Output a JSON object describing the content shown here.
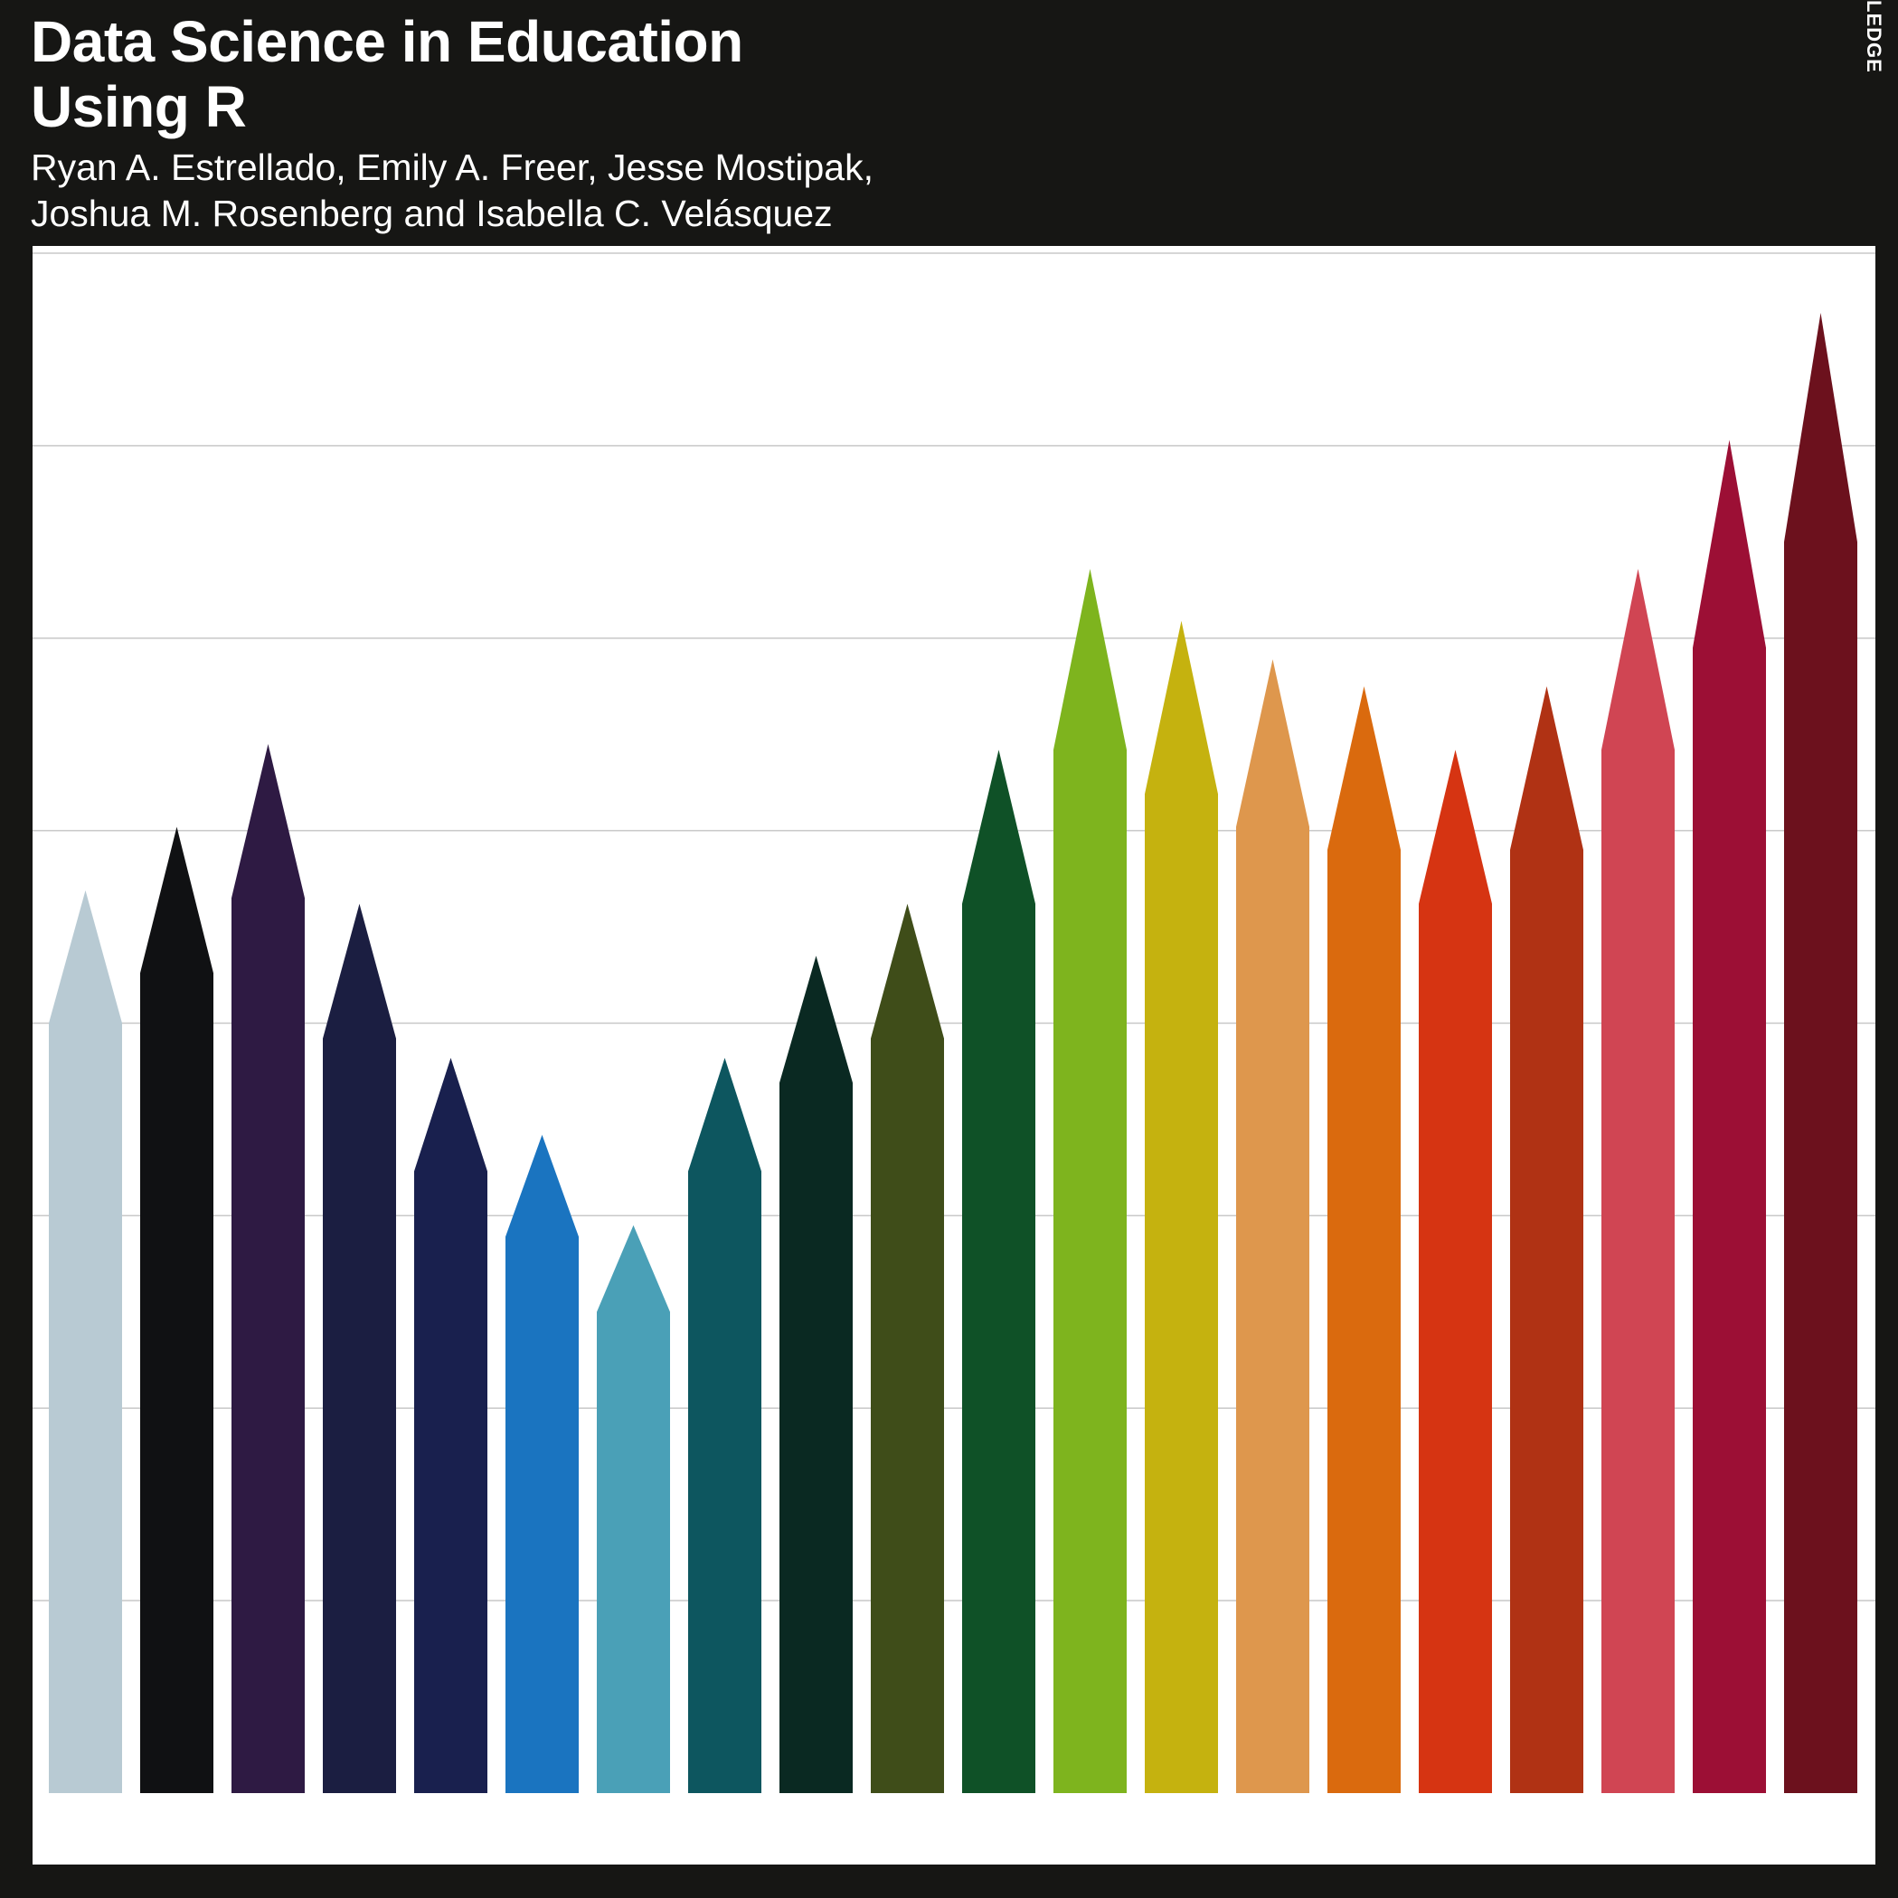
{
  "cover": {
    "title_lines": [
      "Data Science in Education",
      "Using R"
    ],
    "author_lines": [
      "Ryan A. Estrellado, Emily A. Freer, Jesse Mostipak,",
      "Joshua M. Rosenberg and Isabella C. Velásquez"
    ],
    "publisher_fragment": "LEDGE",
    "colors": {
      "background": "#161614",
      "panel": "#ffffff",
      "gridline": "#c8c8c8"
    }
  },
  "chart_data": {
    "type": "bar",
    "ylim": [
      0,
      8
    ],
    "grid": true,
    "bars": [
      {
        "shoulder": 4.0,
        "tip": 4.69,
        "color": "#b8cad3"
      },
      {
        "shoulder": 4.26,
        "tip": 5.02,
        "color": "#101113"
      },
      {
        "shoulder": 4.65,
        "tip": 5.45,
        "color": "#2e1a43"
      },
      {
        "shoulder": 3.92,
        "tip": 4.62,
        "color": "#1b1e41"
      },
      {
        "shoulder": 3.23,
        "tip": 3.82,
        "color": "#19204e"
      },
      {
        "shoulder": 2.89,
        "tip": 3.42,
        "color": "#1a74c0"
      },
      {
        "shoulder": 2.5,
        "tip": 2.95,
        "color": "#4aa0b7"
      },
      {
        "shoulder": 3.23,
        "tip": 3.82,
        "color": "#0d565f"
      },
      {
        "shoulder": 3.69,
        "tip": 4.35,
        "color": "#0a2922"
      },
      {
        "shoulder": 3.92,
        "tip": 4.62,
        "color": "#3f4d19"
      },
      {
        "shoulder": 4.62,
        "tip": 5.42,
        "color": "#0f5127"
      },
      {
        "shoulder": 5.42,
        "tip": 6.36,
        "color": "#7eb41e"
      },
      {
        "shoulder": 5.19,
        "tip": 6.09,
        "color": "#c5b20f"
      },
      {
        "shoulder": 5.02,
        "tip": 5.89,
        "color": "#de974d"
      },
      {
        "shoulder": 4.9,
        "tip": 5.75,
        "color": "#da6a0e"
      },
      {
        "shoulder": 4.62,
        "tip": 5.42,
        "color": "#d63412"
      },
      {
        "shoulder": 4.9,
        "tip": 5.75,
        "color": "#b03214"
      },
      {
        "shoulder": 5.42,
        "tip": 6.36,
        "color": "#d04553"
      },
      {
        "shoulder": 5.95,
        "tip": 7.03,
        "color": "#9c0f35"
      },
      {
        "shoulder": 6.5,
        "tip": 7.69,
        "color": "#6c111d"
      }
    ]
  }
}
